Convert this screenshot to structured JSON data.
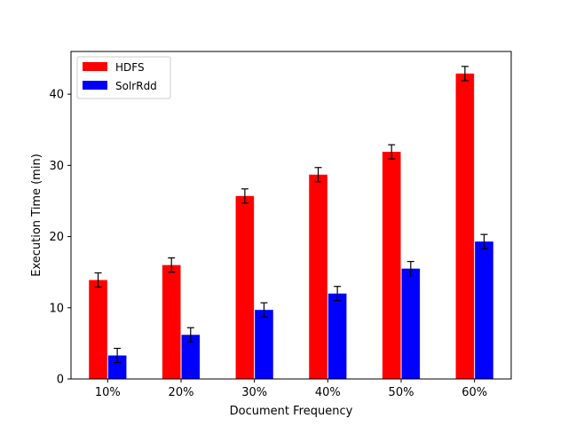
{
  "chart_data": {
    "type": "bar",
    "categories": [
      "10%",
      "20%",
      "30%",
      "40%",
      "50%",
      "60%"
    ],
    "series": [
      {
        "name": "HDFS",
        "color": "#ff0000",
        "values": [
          13.9,
          16.0,
          25.7,
          28.7,
          31.9,
          42.9
        ],
        "errors": [
          1.0,
          1.0,
          1.0,
          1.0,
          1.0,
          1.0
        ]
      },
      {
        "name": "SolrRdd",
        "color": "#0000ff",
        "values": [
          3.3,
          6.2,
          9.7,
          12.0,
          15.5,
          19.3
        ],
        "errors": [
          1.0,
          1.0,
          1.0,
          1.0,
          1.0,
          1.0
        ]
      }
    ],
    "title": "",
    "xlabel": "Document Frequency",
    "ylabel": "Execution Time (min)",
    "ylim": [
      0,
      46
    ],
    "yticks": [
      0,
      10,
      20,
      30,
      40
    ],
    "grid": false,
    "legend_position": "top-left"
  }
}
